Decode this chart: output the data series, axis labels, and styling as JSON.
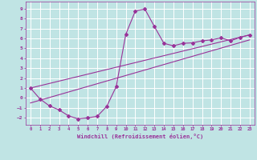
{
  "xlabel": "Windchill (Refroidissement éolien,°C)",
  "ylabel": "",
  "xlim": [
    -0.5,
    23.5
  ],
  "ylim": [
    -2.7,
    9.7
  ],
  "yticks": [
    -2,
    -1,
    0,
    1,
    2,
    3,
    4,
    5,
    6,
    7,
    8,
    9
  ],
  "xticks": [
    0,
    1,
    2,
    3,
    4,
    5,
    6,
    7,
    8,
    9,
    10,
    11,
    12,
    13,
    14,
    15,
    16,
    17,
    18,
    19,
    20,
    21,
    22,
    23
  ],
  "bg_color": "#c0e4e4",
  "grid_color": "#a8d4d4",
  "line_color": "#993399",
  "curve1_x": [
    0,
    1,
    2,
    3,
    4,
    5,
    6,
    7,
    8,
    9,
    10,
    11,
    12,
    13,
    14,
    15,
    16,
    17,
    18,
    19,
    20,
    21,
    22,
    23
  ],
  "curve1_y": [
    1.0,
    -0.1,
    -0.8,
    -1.2,
    -1.8,
    -2.1,
    -2.0,
    -1.85,
    -0.85,
    1.15,
    6.4,
    8.75,
    8.95,
    7.2,
    5.5,
    5.25,
    5.5,
    5.55,
    5.75,
    5.85,
    6.05,
    5.75,
    6.1,
    6.35
  ],
  "curve2_x": [
    0,
    23
  ],
  "curve2_y": [
    1.0,
    6.35
  ],
  "curve3_x": [
    0,
    23
  ],
  "curve3_y": [
    -0.5,
    5.85
  ]
}
